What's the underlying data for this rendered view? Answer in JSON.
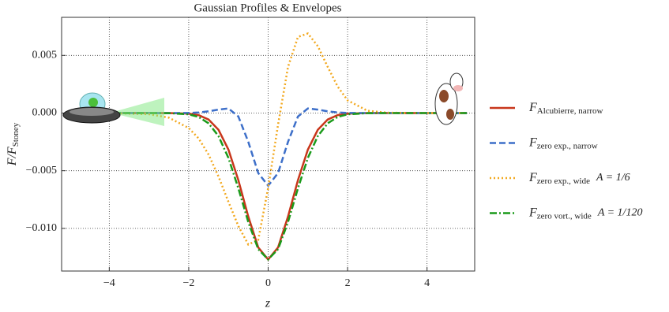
{
  "chart_data": {
    "type": "line",
    "title": "Gaussian Profiles & Envelopes",
    "x_label": "z",
    "y_label": "F/F",
    "y_label_subscript": "Stoney",
    "x": [
      -5,
      -4,
      -3,
      -2.5,
      -2,
      -1.75,
      -1.5,
      -1.25,
      -1,
      -0.75,
      -0.5,
      -0.25,
      0,
      0.25,
      0.5,
      0.75,
      1,
      1.25,
      1.5,
      1.75,
      2,
      2.5,
      3,
      4,
      5
    ],
    "series": [
      {
        "name": "F",
        "subscript": "Alcubierre, narrow",
        "color": "#c8361b",
        "dash": "none",
        "values": [
          0,
          0,
          0,
          0,
          -5e-05,
          -0.00018,
          -0.00056,
          -0.00145,
          -0.00317,
          -0.00582,
          -0.00898,
          -0.01165,
          -0.0127,
          -0.01165,
          -0.00898,
          -0.00582,
          -0.00317,
          -0.00145,
          -0.00056,
          -0.00018,
          -5e-05,
          0,
          0,
          0,
          0
        ]
      },
      {
        "name": "F",
        "subscript": "zero exp., narrow",
        "color": "#3d6fc9",
        "dash": "8,4",
        "values": [
          0,
          0,
          0,
          0,
          1e-05,
          5e-05,
          0.00015,
          0.0003,
          0.0004,
          -0.0003,
          -0.0025,
          -0.0052,
          -0.0063,
          -0.0052,
          -0.0025,
          -0.0003,
          0.0004,
          0.0003,
          0.00015,
          5e-05,
          1e-05,
          0,
          0,
          0,
          0
        ]
      },
      {
        "name": "F",
        "subscript": "zero exp., wide",
        "parameter": "A = 1/6",
        "color": "#f2a81d",
        "dash": "2,3",
        "values": [
          0,
          0,
          -0.0001,
          -0.0004,
          -0.0013,
          -0.0022,
          -0.0036,
          -0.0055,
          -0.0077,
          -0.0098,
          -0.0114,
          -0.011,
          -0.0065,
          -0.001,
          0.004,
          0.0066,
          0.0069,
          0.0058,
          0.004,
          0.0023,
          0.0011,
          0.0002,
          3e-05,
          0,
          0
        ]
      },
      {
        "name": "F",
        "subscript": "zero vort., wide",
        "parameter": "A = 1/120",
        "color": "#1a9a1a",
        "dash": "9,3,2,3",
        "values": [
          0,
          0,
          0,
          -1e-05,
          -0.00011,
          -0.00034,
          -0.00089,
          -0.002,
          -0.00389,
          -0.00653,
          -0.00945,
          -0.0118,
          -0.0127,
          -0.0118,
          -0.00945,
          -0.00653,
          -0.00389,
          -0.002,
          -0.00089,
          -0.00034,
          -0.00011,
          -1e-05,
          0,
          0,
          0
        ]
      }
    ],
    "xlim": [
      -5.2,
      5.2
    ],
    "ylim": [
      -0.0137,
      0.0083
    ],
    "xticks": [
      {
        "value": -4,
        "label": "−4"
      },
      {
        "value": -2,
        "label": "−2"
      },
      0,
      2,
      4
    ],
    "yticks": [
      {
        "value": -0.01,
        "label": "−0.010"
      },
      {
        "value": -0.005,
        "label": "−0.005"
      },
      {
        "value": 0,
        "label": "0.000"
      },
      0.005
    ],
    "grid": true
  }
}
